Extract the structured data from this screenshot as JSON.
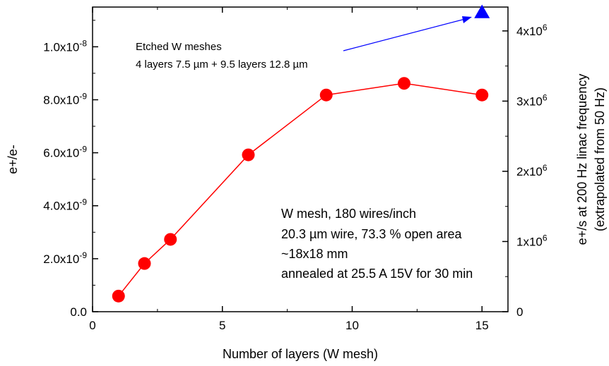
{
  "chart_data": {
    "type": "line",
    "xlabel": "Number of layers (W mesh)",
    "ylabel": "e+/e-",
    "y2label_line1": "e+/s at 200 Hz linac frequency",
    "y2label_line2": "(extrapolated from 50 Hz)",
    "xlim": [
      0,
      16
    ],
    "ylim": [
      0,
      1.15e-08
    ],
    "y2lim": [
      0,
      4340000.0
    ],
    "xticks": [
      0,
      5,
      10,
      15
    ],
    "xtick_labels": [
      "0",
      "5",
      "10",
      "15"
    ],
    "yticks": [
      0,
      2e-09,
      4e-09,
      6e-09,
      8e-09,
      1e-08
    ],
    "ytick_labels": [
      {
        "base": "0.0",
        "exp": ""
      },
      {
        "base": "2.0x10",
        "exp": "-9"
      },
      {
        "base": "4.0x10",
        "exp": "-9"
      },
      {
        "base": "6.0x10",
        "exp": "-9"
      },
      {
        "base": "8.0x10",
        "exp": "-9"
      },
      {
        "base": "1.0x10",
        "exp": "-8"
      }
    ],
    "y2ticks": [
      0,
      1000000.0,
      2000000.0,
      3000000.0,
      4000000.0
    ],
    "y2tick_labels": [
      {
        "base": "0",
        "exp": ""
      },
      {
        "base": "1x10",
        "exp": "6"
      },
      {
        "base": "2x10",
        "exp": "6"
      },
      {
        "base": "3x10",
        "exp": "6"
      },
      {
        "base": "4x10",
        "exp": "6"
      }
    ],
    "series": [
      {
        "color": "#ff0000",
        "marker": "circle",
        "line": true,
        "points": [
          {
            "x": 1,
            "y": 5.9e-10
          },
          {
            "x": 2,
            "y": 1.82e-09
          },
          {
            "x": 3,
            "y": 2.73e-09
          },
          {
            "x": 6,
            "y": 5.92e-09
          },
          {
            "x": 9,
            "y": 8.18e-09
          },
          {
            "x": 12,
            "y": 8.62e-09
          },
          {
            "x": 15,
            "y": 8.18e-09
          }
        ]
      },
      {
        "color": "#0000ff",
        "marker": "triangle",
        "line": false,
        "points": [
          {
            "x": 15,
            "y": 1.13e-08
          }
        ]
      }
    ],
    "annotations": {
      "etched_line1": "Etched W meshes",
      "etched_line2": "4 layers 7.5 µm + 9.5 layers 12.8 µm",
      "mesh_lines": [
        "W mesh, 180 wires/inch",
        "20.3 µm wire, 73.3 % open area",
        "~18x18 mm",
        "annealed at 25.5 A 15V for 30 min"
      ]
    },
    "grid": false,
    "legend": "none"
  }
}
